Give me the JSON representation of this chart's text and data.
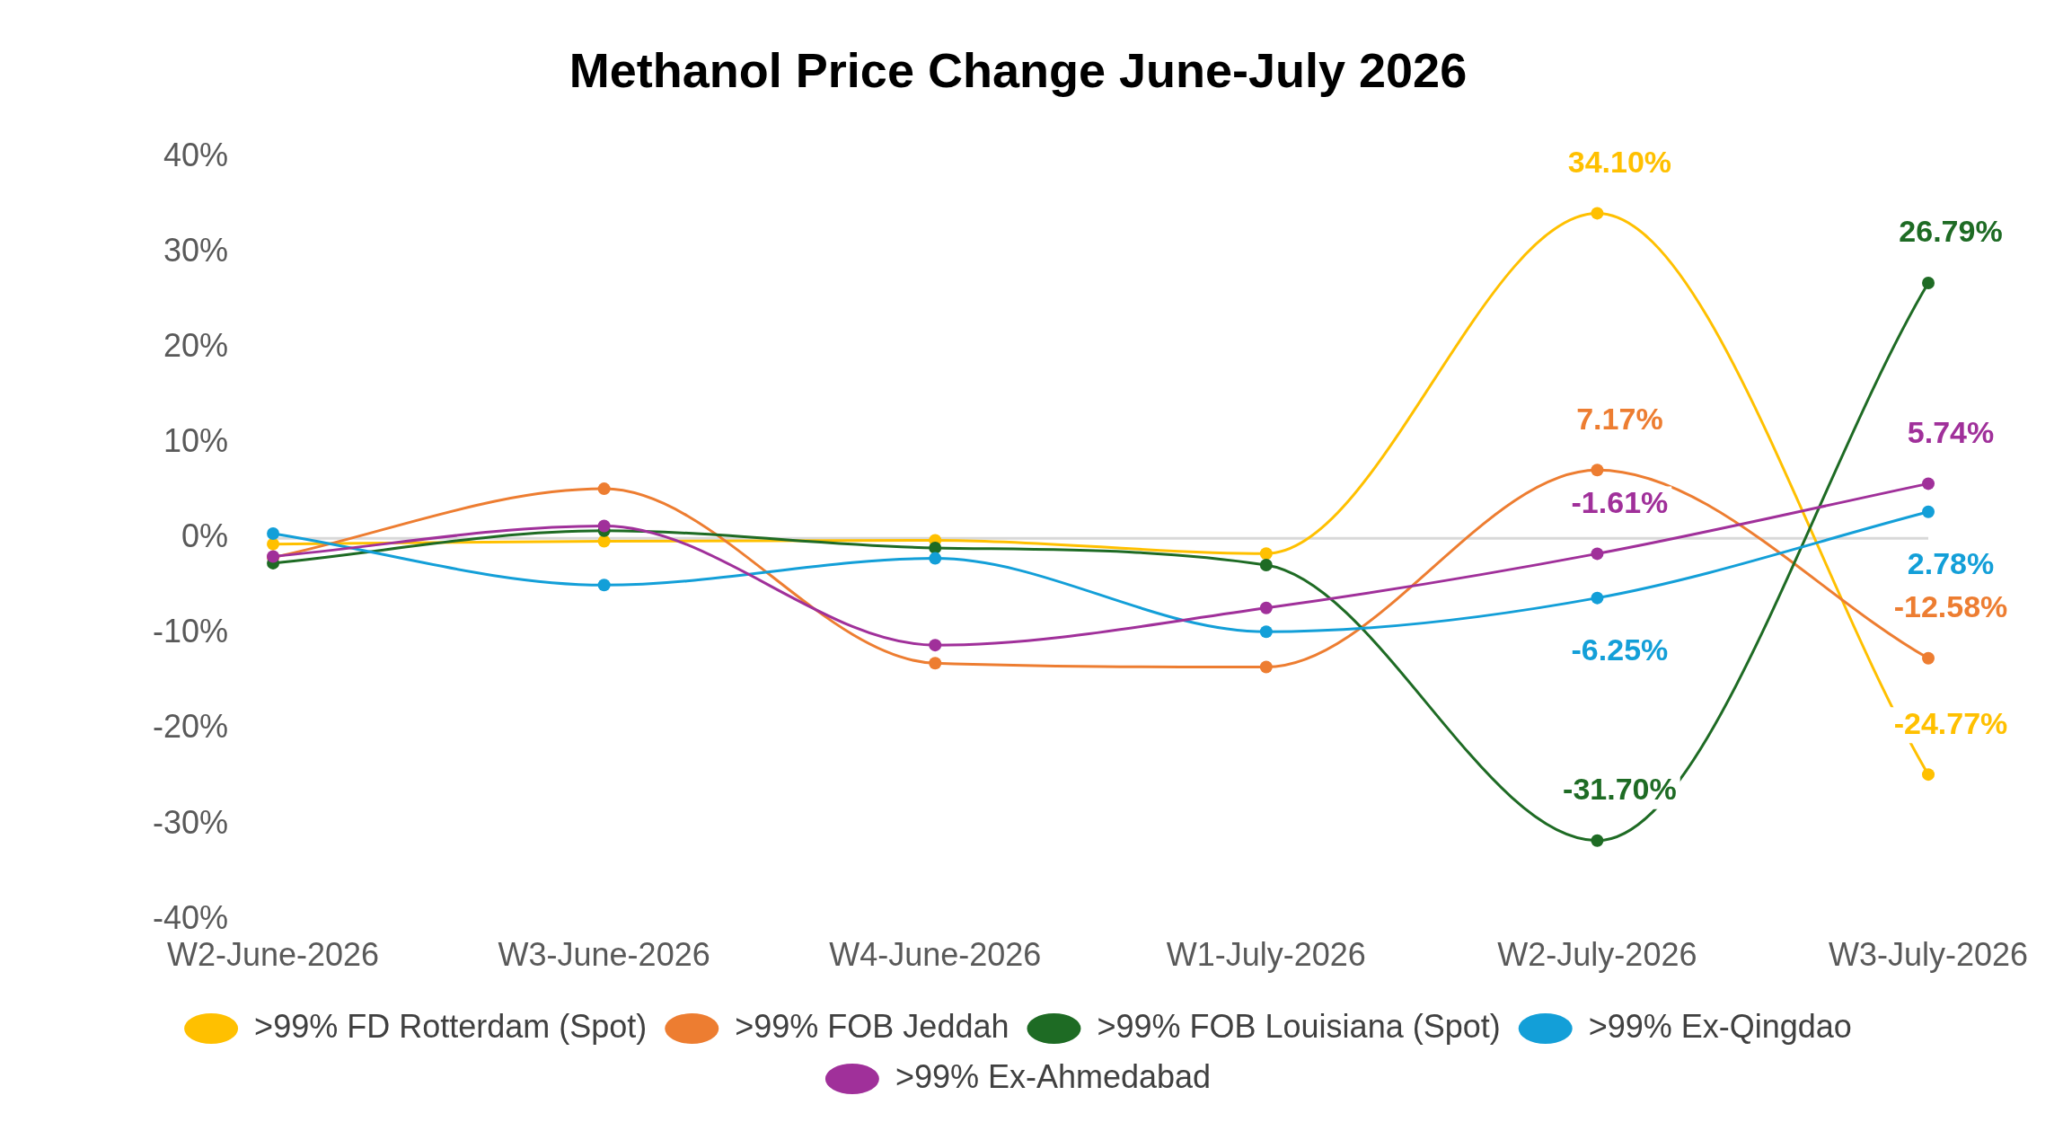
{
  "chart_data": {
    "type": "line",
    "title": "Methanol Price Change June-July 2026",
    "categories": [
      "W2-June-2026",
      "W3-June-2026",
      "W4-June-2026",
      "W1-July-2026",
      "W2-July-2026",
      "W3-July-2026"
    ],
    "ylim": [
      -40,
      40
    ],
    "yticks": [
      {
        "value": -40,
        "label": "-40%"
      },
      {
        "value": -30,
        "label": "-30%"
      },
      {
        "value": -20,
        "label": "-20%"
      },
      {
        "value": -10,
        "label": "-10%"
      },
      {
        "value": 0,
        "label": "0%"
      },
      {
        "value": 10,
        "label": "10%"
      },
      {
        "value": 20,
        "label": "20%"
      },
      {
        "value": 30,
        "label": "30%"
      },
      {
        "value": 40,
        "label": "40%"
      }
    ],
    "ref_lines": [
      {
        "axis": "y",
        "value": 0,
        "color": "#d9d9d9"
      }
    ],
    "grid": false,
    "legend": "bottom",
    "marker": "circle",
    "line_style": "solid",
    "series": [
      {
        "name": ">99% FD Rotterdam (Spot)",
        "color": "#ffc000",
        "values": [
          -0.6,
          -0.3,
          -0.2,
          -1.6,
          34.1,
          -24.77
        ],
        "value_labels": [
          null,
          null,
          null,
          null,
          "34.10%",
          "-24.77%"
        ]
      },
      {
        "name": ">99% FOB Jeddah",
        "color": "#ed7d31",
        "values": [
          -2.0,
          5.2,
          -13.1,
          -13.5,
          7.17,
          -12.58
        ],
        "value_labels": [
          null,
          null,
          null,
          null,
          "7.17%",
          "-12.58%"
        ]
      },
      {
        "name": ">99% FOB Louisiana (Spot)",
        "color": "#1e6b24",
        "values": [
          -2.6,
          0.8,
          -1.0,
          -2.8,
          -31.7,
          26.79
        ],
        "value_labels": [
          null,
          null,
          null,
          null,
          "-31.70%",
          "26.79%"
        ]
      },
      {
        "name": ">99% Ex-Qingdao",
        "color": "#139fd8",
        "values": [
          0.5,
          -4.9,
          -2.1,
          -9.8,
          -6.25,
          2.78
        ],
        "value_labels": [
          null,
          null,
          null,
          null,
          "-6.25%",
          "2.78%"
        ]
      },
      {
        "name": ">99% Ex-Ahmedabad",
        "color": "#a0309a",
        "values": [
          -1.9,
          1.3,
          -11.2,
          -7.3,
          -1.61,
          5.74
        ],
        "value_labels": [
          null,
          null,
          null,
          null,
          "-1.61%",
          "5.74%"
        ]
      }
    ]
  }
}
